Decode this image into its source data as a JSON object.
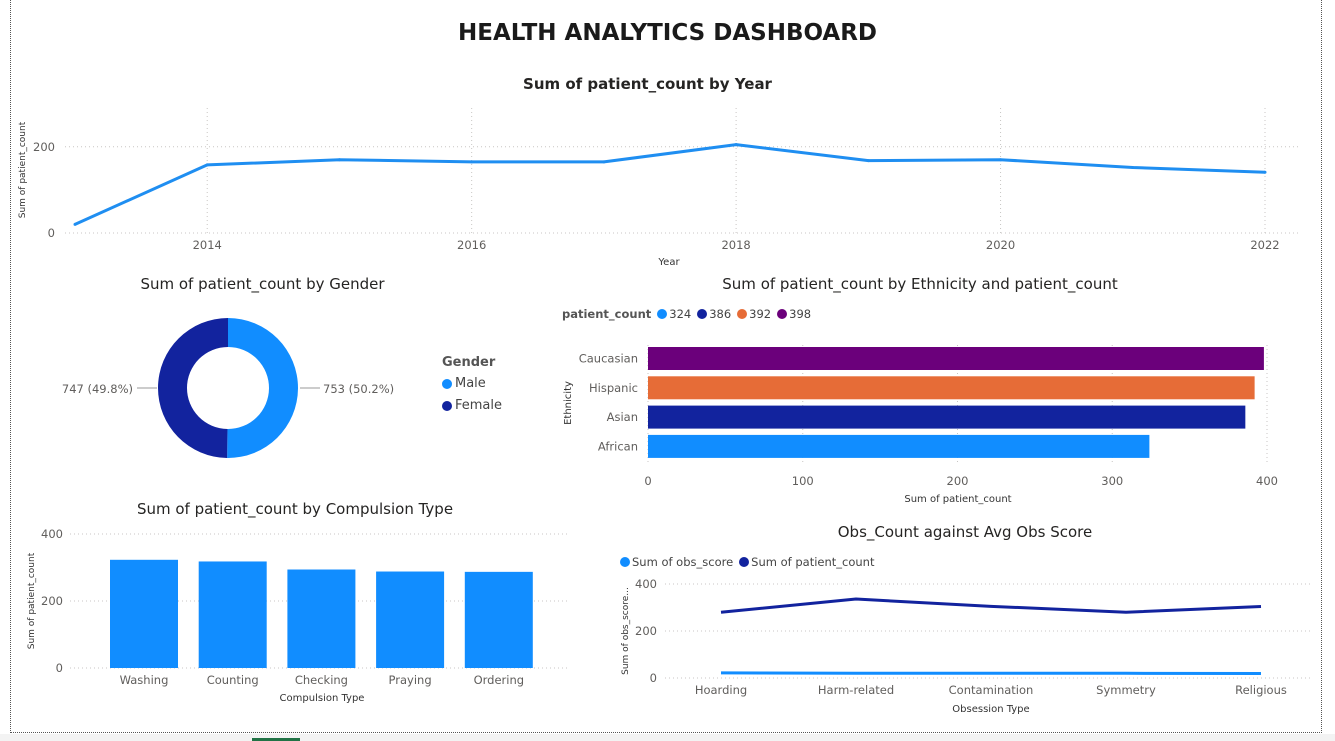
{
  "dashboard": {
    "title": "HEALTH ANALYTICS DASHBOARD"
  },
  "year_chart": {
    "title": "Sum of patient_count by Year",
    "xlabel": "Year",
    "ylabel": "Sum of patient_count",
    "line_color": "#1f8ef1"
  },
  "gender_chart": {
    "title": "Sum of patient_count by Gender",
    "legend_title": "Gender",
    "male_label": "Male",
    "female_label": "Female",
    "male_slice_label": "753 (50.2%)",
    "female_slice_label": "747 (49.8%)",
    "male_color": "#118dff",
    "female_color": "#12239e"
  },
  "ethnicity_chart": {
    "title": "Sum of patient_count by Ethnicity and patient_count",
    "legend_title": "patient_count",
    "legend_items": [
      {
        "label": "324",
        "color": "#118dff"
      },
      {
        "label": "386",
        "color": "#12239e"
      },
      {
        "label": "392",
        "color": "#e66c37"
      },
      {
        "label": "398",
        "color": "#6b007b"
      }
    ],
    "xlabel": "Sum of patient_count",
    "ylabel": "Ethnicity"
  },
  "compulsion_chart": {
    "title": "Sum of patient_count by Compulsion Type",
    "xlabel": "Compulsion Type",
    "ylabel": "Sum of patient_count",
    "bar_color": "#118dff"
  },
  "obs_chart": {
    "title": "Obs_Count against Avg Obs Score",
    "legend_items": [
      {
        "label": "Sum of obs_score",
        "color": "#118dff"
      },
      {
        "label": "Sum of patient_count",
        "color": "#12239e"
      }
    ],
    "xlabel": "Obsession Type",
    "ylabel": "Sum of obs_score..."
  },
  "chart_data": [
    {
      "type": "line",
      "title": "Sum of patient_count by Year",
      "xlabel": "Year",
      "ylabel": "Sum of patient_count",
      "x": [
        2013,
        2014,
        2015,
        2016,
        2017,
        2018,
        2019,
        2020,
        2021,
        2022
      ],
      "x_ticks": [
        "2014",
        "2016",
        "2018",
        "2020",
        "2022"
      ],
      "y_ticks": [
        "0",
        "200"
      ],
      "series": [
        {
          "values": [
            20,
            158,
            170,
            165,
            165,
            205,
            168,
            170,
            152,
            141
          ]
        }
      ],
      "ylim": [
        0,
        290
      ],
      "grid": true
    },
    {
      "type": "pie",
      "title": "Sum of patient_count by Gender",
      "categories": [
        "Male",
        "Female"
      ],
      "values": [
        753,
        747
      ],
      "labels": [
        "753 (50.2%)",
        "747 (49.8%)"
      ],
      "legend": "right"
    },
    {
      "type": "bar",
      "orientation": "horizontal",
      "title": "Sum of patient_count by Ethnicity and patient_count",
      "xlabel": "Sum of patient_count",
      "ylabel": "Ethnicity",
      "categories": [
        "Caucasian",
        "Hispanic",
        "Asian",
        "African"
      ],
      "values": [
        398,
        392,
        386,
        324
      ],
      "colors": [
        "#6b007b",
        "#e66c37",
        "#12239e",
        "#118dff"
      ],
      "x_ticks": [
        "0",
        "100",
        "200",
        "300",
        "400"
      ],
      "xlim": [
        0,
        400
      ],
      "legend": "top-left"
    },
    {
      "type": "bar",
      "title": "Sum of patient_count by Compulsion Type",
      "xlabel": "Compulsion Type",
      "ylabel": "Sum of patient_count",
      "categories": [
        "Washing",
        "Counting",
        "Checking",
        "Praying",
        "Ordering"
      ],
      "values": [
        323,
        318,
        294,
        288,
        287
      ],
      "y_ticks": [
        "0",
        "200",
        "400"
      ],
      "ylim": [
        0,
        400
      ],
      "grid": true
    },
    {
      "type": "line",
      "title": "Obs_Count against Avg Obs Score",
      "xlabel": "Obsession Type",
      "ylabel": "Sum of obs_score...",
      "categories": [
        "Hoarding",
        "Harm-related",
        "Contamination",
        "Symmetry",
        "Religious"
      ],
      "y_ticks": [
        "0",
        "200",
        "400"
      ],
      "ylim": [
        0,
        400
      ],
      "series": [
        {
          "name": "Sum of obs_score",
          "values": [
            22,
            20,
            20,
            20,
            19
          ]
        },
        {
          "name": "Sum of patient_count",
          "values": [
            280,
            336,
            305,
            280,
            304
          ]
        }
      ],
      "legend": "top-left",
      "grid": true
    }
  ]
}
